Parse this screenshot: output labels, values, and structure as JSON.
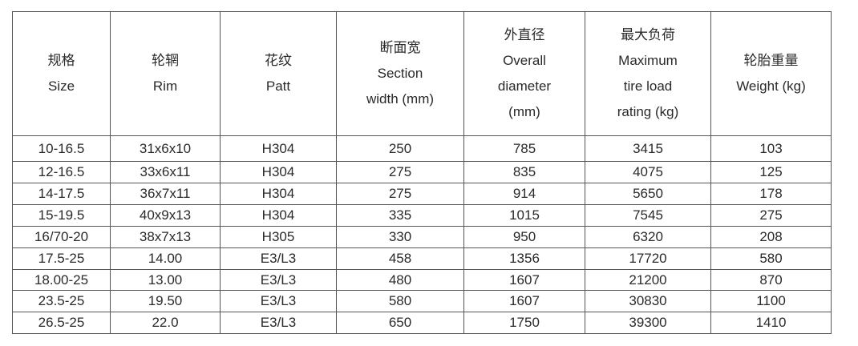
{
  "headers": [
    [
      "规格",
      "Size"
    ],
    [
      "轮辋",
      "Rim"
    ],
    [
      "花纹",
      "Patt"
    ],
    [
      "断面宽",
      "Section",
      "width (mm)"
    ],
    [
      "外直径",
      "Overall",
      "diameter",
      "(mm)"
    ],
    [
      "最大负荷",
      "Maximum",
      "tire load",
      "rating (kg)"
    ],
    [
      "轮胎重量",
      "Weight (kg)"
    ]
  ],
  "rows": [
    [
      "10-16.5",
      "31x6x10",
      "H304",
      "250",
      "785",
      "3415",
      "103"
    ],
    [
      "12-16.5",
      "33x6x11",
      "H304",
      "275",
      "835",
      "4075",
      "125"
    ],
    [
      "14-17.5",
      "36x7x11",
      "H304",
      "275",
      "914",
      "5650",
      "178"
    ],
    [
      "15-19.5",
      "40x9x13",
      "H304",
      "335",
      "1015",
      "7545",
      "275"
    ],
    [
      "16/70-20",
      "38x7x13",
      "H305",
      "330",
      "950",
      "6320",
      "208"
    ],
    [
      "17.5-25",
      "14.00",
      "E3/L3",
      "458",
      "1356",
      "17720",
      "580"
    ],
    [
      "18.00-25",
      "13.00",
      "E3/L3",
      "480",
      "1607",
      "21200",
      "870"
    ],
    [
      "23.5-25",
      "19.50",
      "E3/L3",
      "580",
      "1607",
      "30830",
      "1100"
    ],
    [
      "26.5-25",
      "22.0",
      "E3/L3",
      "650",
      "1750",
      "39300",
      "1410"
    ]
  ]
}
